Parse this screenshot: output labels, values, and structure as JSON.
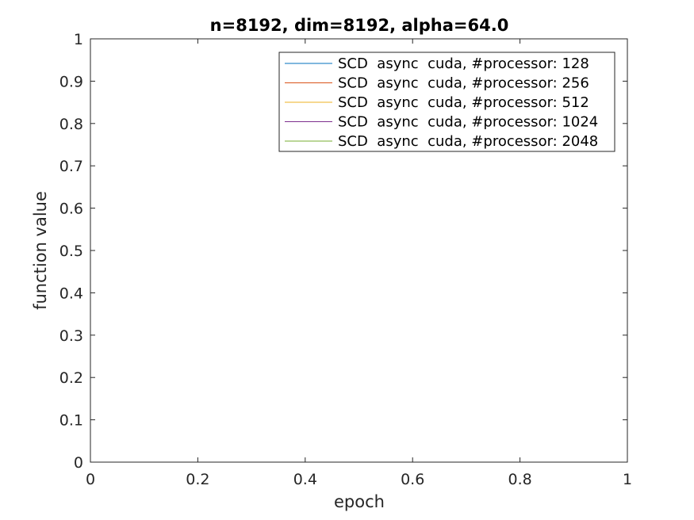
{
  "chart_data": {
    "type": "line",
    "title": "n=8192, dim=8192, alpha=64.0",
    "xlabel": "epoch",
    "ylabel": "function value",
    "xlim": [
      0,
      1
    ],
    "ylim": [
      0,
      1
    ],
    "x_ticks": [
      "0",
      "0.2",
      "0.4",
      "0.6",
      "0.8",
      "1"
    ],
    "y_ticks": [
      "0",
      "0.1",
      "0.2",
      "0.3",
      "0.4",
      "0.5",
      "0.6",
      "0.7",
      "0.8",
      "0.9",
      "1"
    ],
    "grid": false,
    "legend_position": "top-right",
    "series": [
      {
        "name": "SCD  async  cuda, #processor: 128",
        "color": "#0072bd",
        "x": [],
        "y": []
      },
      {
        "name": "SCD  async  cuda, #processor: 256",
        "color": "#d95319",
        "x": [],
        "y": []
      },
      {
        "name": "SCD  async  cuda, #processor: 512",
        "color": "#edb120",
        "x": [],
        "y": []
      },
      {
        "name": "SCD  async  cuda, #processor: 1024",
        "color": "#7e2f8e",
        "x": [],
        "y": []
      },
      {
        "name": "SCD  async  cuda, #processor: 2048",
        "color": "#77ac30",
        "x": [],
        "y": []
      }
    ]
  }
}
